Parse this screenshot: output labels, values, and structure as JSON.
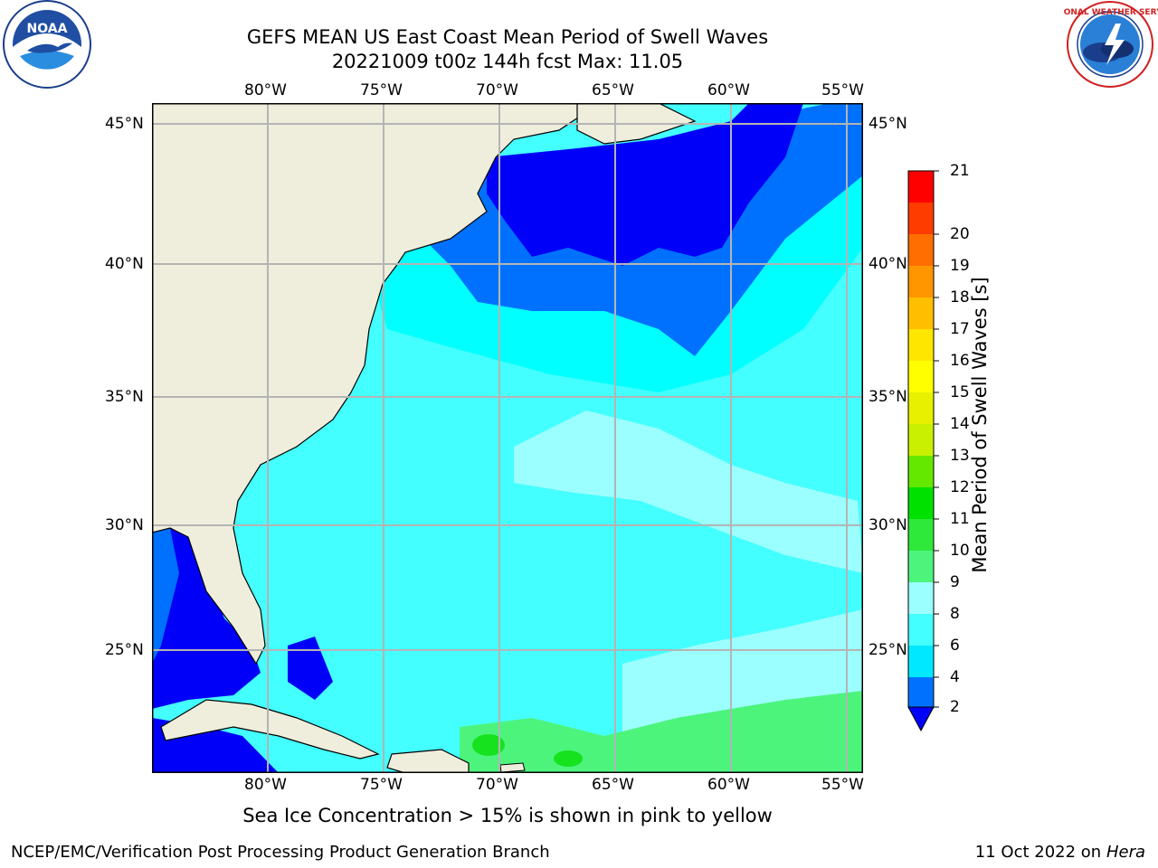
{
  "header": {
    "title_line1": "GEFS MEAN US East Coast Mean Period of Swell Waves",
    "title_line2": "20221009 t00z 144h fcst   Max: 11.05"
  },
  "logos": {
    "left": {
      "text": "NOAA",
      "ring_text": "NATIONAL OCEANIC AND ATMOSPHERIC ADMINISTRATION · U.S. DEPARTMENT OF COMMERCE"
    },
    "right": {
      "ring_text": "NATIONAL WEATHER SERVICE"
    }
  },
  "map": {
    "lon_labels": [
      "80°W",
      "75°W",
      "70°W",
      "65°W",
      "60°W",
      "55°W"
    ],
    "lat_labels": [
      "45°N",
      "40°N",
      "35°N",
      "30°N",
      "25°N"
    ],
    "colors": {
      "land": "#efeedd",
      "ocean_2_4": "#0071ff",
      "ocean_4_6": "#00ffff",
      "ocean_6_8": "#44ffff",
      "ocean_8_9": "#9cffff",
      "ocean_9_10": "#4cf47c",
      "ocean_10_11": "#16e21e",
      "ocean_lt2": "#0000f8",
      "grid": "#b4b4b4"
    }
  },
  "colorbar": {
    "label": "Mean Period of Swell Waves [s]",
    "ticks": [
      "2",
      "4",
      "6",
      "8",
      "9",
      "10",
      "11",
      "12",
      "13",
      "14",
      "15",
      "16",
      "17",
      "18",
      "19",
      "20",
      "21"
    ],
    "colors": [
      "#0071ff",
      "#00e8ff",
      "#44ffff",
      "#9cffff",
      "#4cf47c",
      "#2ee83a",
      "#00e100",
      "#64e800",
      "#c8f000",
      "#e8f000",
      "#ffff00",
      "#ffe600",
      "#ffbe00",
      "#ff9600",
      "#ff6e00",
      "#ff3c00",
      "#ff0000"
    ],
    "under_color": "#0000f8"
  },
  "footer": {
    "note": "Sea Ice Concentration > 15% is shown in pink to yellow",
    "credit": "NCEP/EMC/Verification Post Processing Product Generation Branch",
    "date": "11 Oct 2022 on ",
    "machine": "Hera"
  }
}
